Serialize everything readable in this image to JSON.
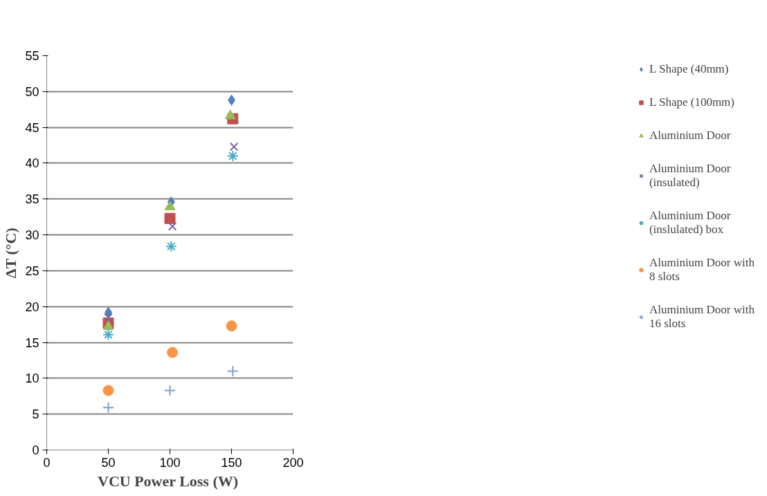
{
  "chart_data": {
    "type": "scatter",
    "xlabel": "VCU Power  Loss (W)",
    "ylabel": "ΔT (°C)",
    "xlim": [
      0,
      200
    ],
    "xticks": [
      0,
      50,
      100,
      150,
      200
    ],
    "ylim": [
      0,
      55
    ],
    "yticks": [
      0,
      5,
      10,
      15,
      20,
      25,
      30,
      35,
      40,
      45,
      50,
      55
    ],
    "grid": "y",
    "legend": "right",
    "series": [
      {
        "name": "L Shape (40mm)",
        "color": "#4f81bd",
        "marker": "diamond",
        "x": [
          50,
          101,
          150
        ],
        "values": [
          19.2,
          34.6,
          48.8
        ]
      },
      {
        "name": "L Shape (100mm)",
        "color": "#c0504d",
        "marker": "square",
        "x": [
          50,
          100,
          151
        ],
        "values": [
          17.7,
          32.3,
          46.2
        ]
      },
      {
        "name": "Aluminium Door",
        "color": "#9bbb59",
        "marker": "triangle",
        "x": [
          50,
          100,
          149
        ],
        "values": [
          17.2,
          33.9,
          46.6
        ]
      },
      {
        "name": "Aluminium Door (insulated)",
        "color": "#8064a2",
        "marker": "x",
        "x": [
          50,
          102,
          152
        ],
        "values": [
          18.5,
          31.2,
          42.3
        ]
      },
      {
        "name": "Aluminium Door (inslulated) box",
        "color": "#4bacc6",
        "x": [
          50,
          101,
          151
        ],
        "values": [
          16.1,
          28.4,
          41.0
        ]
      },
      {
        "name": "Aluminium Door with 8 slots",
        "color": "#f79646",
        "marker": "circle",
        "x": [
          50,
          102,
          150
        ],
        "values": [
          8.3,
          13.6,
          17.3
        ]
      },
      {
        "name": "Aluminium Door with 16 slots",
        "color": "#7f9fd0",
        "marker": "cross",
        "x": [
          50,
          100,
          151
        ],
        "values": [
          5.9,
          8.3,
          11.0
        ]
      }
    ]
  }
}
